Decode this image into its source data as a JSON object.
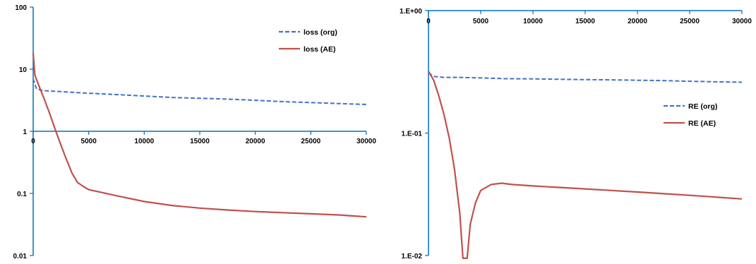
{
  "chart_data": [
    {
      "type": "line",
      "title": "",
      "xlabel": "",
      "ylabel": "",
      "xlim": [
        0,
        30000
      ],
      "ylim": [
        0.01,
        100
      ],
      "y_scale": "log",
      "grid": false,
      "legend_position": "top-right",
      "x_ticks": [
        "0",
        "5000",
        "10000",
        "15000",
        "20000",
        "25000",
        "30000"
      ],
      "y_ticks": [
        "100",
        "10",
        "1",
        "0.1",
        "0.01"
      ],
      "series": [
        {
          "name": "loss (org)",
          "color": "#4472c4",
          "style": "dashed",
          "x": [
            0,
            300,
            1000,
            2000,
            3000,
            5000,
            7500,
            10000,
            12500,
            15000,
            17500,
            20000,
            22500,
            25000,
            27500,
            30000
          ],
          "y": [
            7,
            4.8,
            4.5,
            4.4,
            4.3,
            4.1,
            3.9,
            3.7,
            3.5,
            3.4,
            3.3,
            3.15,
            3.0,
            2.9,
            2.8,
            2.7
          ]
        },
        {
          "name": "loss (AE)",
          "color": "#c0504d",
          "style": "solid",
          "x": [
            0,
            150,
            500,
            1000,
            1500,
            2000,
            2500,
            3000,
            3500,
            4000,
            4500,
            5000,
            6000,
            7000,
            8000,
            10000,
            12500,
            15000,
            17500,
            20000,
            22500,
            25000,
            27500,
            30000
          ],
          "y": [
            18,
            8,
            5.5,
            3.3,
            1.9,
            1.05,
            0.6,
            0.35,
            0.21,
            0.15,
            0.13,
            0.115,
            0.105,
            0.096,
            0.088,
            0.074,
            0.064,
            0.058,
            0.054,
            0.051,
            0.049,
            0.047,
            0.045,
            0.042
          ]
        }
      ]
    },
    {
      "type": "line",
      "title": "",
      "xlabel": "",
      "ylabel": "",
      "xlim": [
        0,
        30000
      ],
      "ylim": [
        0.01,
        1
      ],
      "y_scale": "log",
      "grid": false,
      "legend_position": "right",
      "x_ticks": [
        "0",
        "5000",
        "10000",
        "15000",
        "20000",
        "25000",
        "30000"
      ],
      "y_ticks": [
        "1.E+00",
        "1.E-01",
        "1.E-02"
      ],
      "series": [
        {
          "name": "RE (org)",
          "color": "#4472c4",
          "style": "dashed",
          "x": [
            0,
            500,
            1500,
            3000,
            5000,
            7500,
            10000,
            12500,
            15000,
            17500,
            20000,
            22500,
            25000,
            27500,
            30000
          ],
          "y": [
            0.31,
            0.29,
            0.285,
            0.285,
            0.282,
            0.278,
            0.277,
            0.275,
            0.273,
            0.272,
            0.27,
            0.268,
            0.265,
            0.262,
            0.26
          ]
        },
        {
          "name": "RE (AE)",
          "color": "#c0504d",
          "style": "solid",
          "x": [
            0,
            500,
            1000,
            1500,
            2000,
            2500,
            3000,
            3300,
            3700,
            4000,
            4500,
            5000,
            6000,
            7000,
            8000,
            10000,
            12500,
            15000,
            17500,
            20000,
            22500,
            25000,
            27500,
            30000
          ],
          "y": [
            0.32,
            0.27,
            0.2,
            0.14,
            0.09,
            0.05,
            0.022,
            0.0095,
            0.0095,
            0.018,
            0.027,
            0.034,
            0.038,
            0.039,
            0.038,
            0.037,
            0.036,
            0.035,
            0.034,
            0.033,
            0.032,
            0.031,
            0.03,
            0.029
          ]
        }
      ]
    }
  ]
}
